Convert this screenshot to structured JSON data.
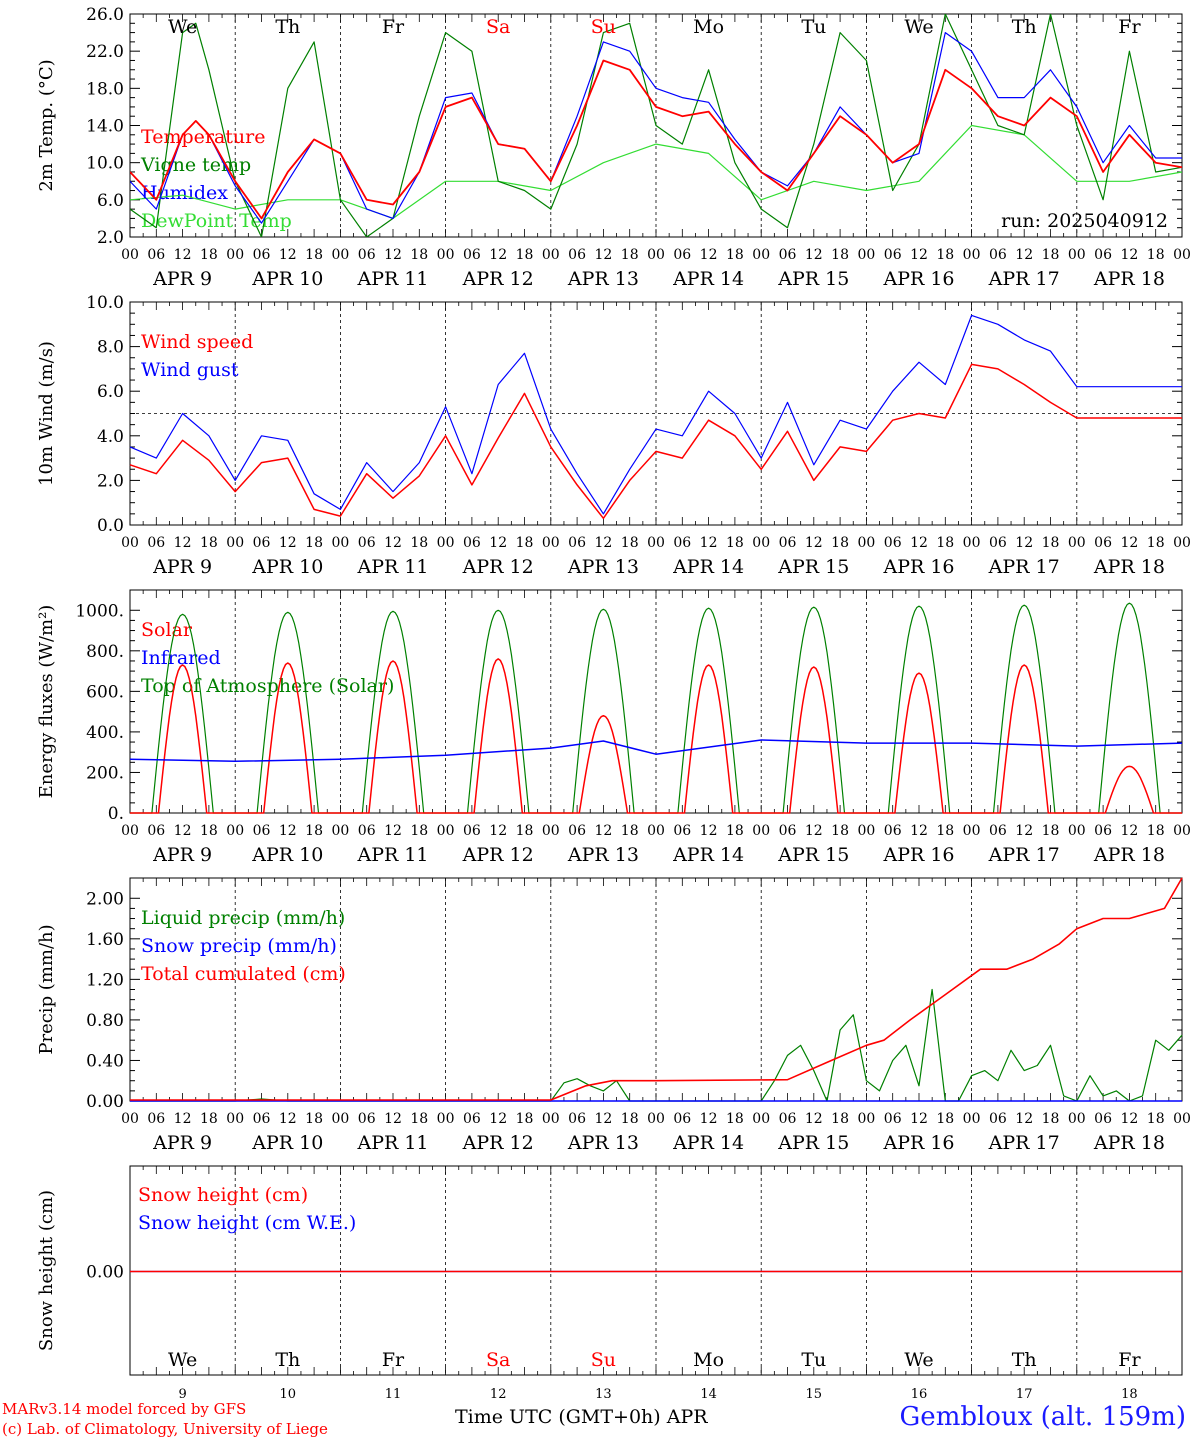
{
  "colors": {
    "red": "#ff0000",
    "blue": "#0000ff",
    "green": "#008000",
    "light_green": "#33dd33",
    "black": "#000000"
  },
  "run_label": "run: 2025040912",
  "footer": {
    "credit1": "MARv3.14 model forced by GFS",
    "credit2": "(c) Lab. of Climatology, University of Liege",
    "xtitle": "Time UTC (GMT+0h) APR",
    "station": "Gembloux (alt. 159m)"
  },
  "chart_data": [
    {
      "type": "line",
      "ylabel": "2m Temp. (°C)",
      "ylim": [
        2,
        26
      ],
      "yticks": [
        "2.0",
        "6.0",
        "10.0",
        "14.0",
        "18.0",
        "22.0",
        "26.0"
      ],
      "ytick_values": [
        2,
        6,
        10,
        14,
        18,
        22,
        26
      ],
      "day_labels": [
        "We",
        "Th",
        "Fr",
        "Sa",
        "Su",
        "Mo",
        "Tu",
        "We",
        "Th",
        "Fr"
      ],
      "legend": [
        "Temperature",
        "Vigne temp",
        "Humidex",
        "DewPoint Temp"
      ],
      "series": [
        {
          "name": "Temperature",
          "color": "#ff0000",
          "x": [
            0,
            6,
            12,
            15,
            18,
            24,
            30,
            36,
            42,
            48,
            54,
            60,
            66,
            72,
            78,
            84,
            90,
            96,
            102,
            108,
            114,
            120,
            126,
            132,
            138,
            144,
            150,
            156,
            162,
            168,
            174,
            180,
            186,
            192,
            198,
            204,
            210,
            216,
            222,
            228,
            234,
            240
          ],
          "values": [
            9,
            6,
            13,
            14.5,
            13,
            8,
            4,
            9,
            12.5,
            11,
            6,
            5.5,
            9,
            16,
            17,
            12,
            11.5,
            8,
            14,
            21,
            20,
            16,
            15,
            15.5,
            12,
            9,
            7,
            11,
            15,
            13,
            10,
            12,
            20,
            18,
            15,
            14,
            17,
            15,
            9,
            13,
            10,
            9.5
          ]
        },
        {
          "name": "Vigne temp",
          "color": "#008000",
          "x": [
            0,
            6,
            12,
            15,
            18,
            24,
            30,
            36,
            42,
            48,
            54,
            60,
            66,
            72,
            78,
            84,
            90,
            96,
            102,
            108,
            114,
            120,
            126,
            132,
            138,
            144,
            150,
            156,
            162,
            168,
            174,
            180,
            186,
            192,
            198,
            204,
            210,
            216,
            222,
            228,
            234,
            240
          ],
          "values": [
            5,
            3,
            24,
            25,
            20,
            8,
            2,
            18,
            23,
            6,
            2,
            4,
            15,
            24,
            22,
            8,
            7,
            5,
            12,
            24,
            25,
            14,
            12,
            20,
            10,
            5,
            3,
            12,
            24,
            21,
            7,
            12,
            26,
            20,
            14,
            13,
            26,
            14,
            6,
            22,
            9,
            9.5
          ]
        },
        {
          "name": "Humidex",
          "color": "#0000ff",
          "x": [
            0,
            6,
            12,
            15,
            18,
            24,
            30,
            36,
            42,
            48,
            54,
            60,
            66,
            72,
            78,
            84,
            90,
            96,
            102,
            108,
            114,
            120,
            126,
            132,
            138,
            144,
            150,
            156,
            162,
            168,
            174,
            180,
            186,
            192,
            198,
            204,
            210,
            216,
            222,
            228,
            234,
            240
          ],
          "values": [
            8,
            5,
            13,
            14.5,
            13,
            7.5,
            3.5,
            8,
            12.5,
            11,
            5,
            4,
            9,
            17,
            17.5,
            12,
            11.5,
            8,
            15,
            23,
            22,
            18,
            17,
            16.5,
            12.5,
            9,
            7.5,
            11,
            16,
            13,
            10,
            11,
            24,
            22,
            17,
            17,
            20,
            16,
            10,
            14,
            10.5,
            10.5
          ]
        },
        {
          "name": "DewPoint Temp",
          "color": "#33dd33",
          "x": [
            0,
            12,
            24,
            36,
            48,
            60,
            72,
            84,
            96,
            108,
            120,
            132,
            144,
            156,
            168,
            180,
            192,
            204,
            216,
            228,
            240
          ],
          "values": [
            6,
            6.5,
            5,
            6,
            6,
            4,
            8,
            8,
            7,
            10,
            12,
            11,
            6,
            8,
            7,
            8,
            14,
            13,
            8,
            8,
            9
          ]
        }
      ]
    },
    {
      "type": "line",
      "ylabel": "10m Wind (m/s)",
      "ylim": [
        0,
        10
      ],
      "yticks": [
        "0.0",
        "2.0",
        "4.0",
        "6.0",
        "8.0",
        "10.0"
      ],
      "ytick_values": [
        0,
        2,
        4,
        6,
        8,
        10
      ],
      "reference_line": 5,
      "legend": [
        "Wind speed",
        "Wind gust"
      ],
      "series": [
        {
          "name": "Wind speed",
          "color": "#ff0000",
          "x": [
            0,
            6,
            12,
            18,
            24,
            30,
            36,
            42,
            48,
            54,
            60,
            66,
            72,
            78,
            84,
            90,
            96,
            102,
            108,
            114,
            120,
            126,
            132,
            138,
            144,
            150,
            156,
            162,
            168,
            174,
            180,
            186,
            192,
            198,
            204,
            210,
            216,
            222,
            228,
            234,
            240
          ],
          "values": [
            2.7,
            2.3,
            3.8,
            2.9,
            1.5,
            2.8,
            3,
            0.7,
            0.4,
            2.3,
            1.2,
            2.2,
            4,
            1.8,
            3.9,
            5.9,
            3.5,
            1.8,
            0.3,
            2,
            3.3,
            3,
            4.7,
            4,
            2.5,
            4.2,
            2,
            3.5,
            3.3,
            4.7,
            5,
            4.8,
            7.2,
            7,
            6.3,
            5.5,
            4.8,
            4.8,
            4.8,
            4.8,
            4.8
          ]
        },
        {
          "name": "Wind gust",
          "color": "#0000ff",
          "x": [
            0,
            6,
            12,
            18,
            24,
            30,
            36,
            42,
            48,
            54,
            60,
            66,
            72,
            78,
            84,
            90,
            96,
            102,
            108,
            114,
            120,
            126,
            132,
            138,
            144,
            150,
            156,
            162,
            168,
            174,
            180,
            186,
            192,
            198,
            204,
            210,
            216,
            222,
            228,
            234,
            240
          ],
          "values": [
            3.5,
            3,
            5,
            4,
            2,
            4,
            3.8,
            1.4,
            0.7,
            2.8,
            1.5,
            2.8,
            5.3,
            2.3,
            6.3,
            7.7,
            4.3,
            2.3,
            0.5,
            2.5,
            4.3,
            4,
            6,
            5,
            3,
            5.5,
            2.7,
            4.7,
            4.3,
            6,
            7.3,
            6.3,
            9.4,
            9,
            8.3,
            7.8,
            6.2,
            6.2,
            6.2,
            6.2,
            6.2
          ]
        }
      ]
    },
    {
      "type": "line",
      "ylabel": "Energy fluxes (W/m²)",
      "ylim": [
        0,
        1100
      ],
      "yticks": [
        "0.",
        "200.",
        "400.",
        "600.",
        "800.",
        "1000."
      ],
      "ytick_values": [
        0,
        200,
        400,
        600,
        800,
        1000
      ],
      "legend": [
        "Solar",
        "Infrared",
        "Top of Atmosphere (Solar)"
      ],
      "series": [
        {
          "name": "Top of Atmosphere (Solar)",
          "color": "#008000",
          "daily_peak": [
            980,
            990,
            995,
            1000,
            1005,
            1010,
            1015,
            1020,
            1025,
            1035
          ]
        },
        {
          "name": "Solar",
          "color": "#ff0000",
          "daily_peak": [
            730,
            740,
            750,
            760,
            480,
            730,
            720,
            690,
            730,
            230
          ]
        },
        {
          "name": "Infrared",
          "color": "#0000ff",
          "x": [
            0,
            24,
            48,
            72,
            96,
            108,
            120,
            144,
            168,
            192,
            216,
            240
          ],
          "values": [
            265,
            255,
            265,
            285,
            320,
            355,
            290,
            360,
            345,
            345,
            330,
            345
          ]
        }
      ]
    },
    {
      "type": "line",
      "ylabel": "Precip (mm/h)",
      "ylim": [
        0,
        2.2
      ],
      "yticks": [
        "0.00",
        "0.40",
        "0.80",
        "1.20",
        "1.60",
        "2.00"
      ],
      "ytick_values": [
        0,
        0.4,
        0.8,
        1.2,
        1.6,
        2.0
      ],
      "legend": [
        "Liquid precip (mm/h)",
        "Snow precip (mm/h)",
        "Total cumulated (cm)"
      ],
      "series": [
        {
          "name": "Liquid precip (mm/h)",
          "color": "#008000",
          "x": [
            0,
            12,
            24,
            30,
            36,
            48,
            96,
            99,
            102,
            105,
            108,
            111,
            114,
            117,
            120,
            126,
            138,
            144,
            147,
            150,
            153,
            156,
            159,
            162,
            165,
            168,
            171,
            174,
            177,
            180,
            183,
            186,
            189,
            192,
            195,
            198,
            201,
            204,
            207,
            210,
            213,
            216,
            219,
            222,
            225,
            228,
            231,
            234,
            237,
            240
          ],
          "values": [
            0,
            0,
            0,
            0.02,
            0,
            0,
            0,
            0.18,
            0.22,
            0.15,
            0.1,
            0.2,
            0,
            0,
            0,
            0,
            0,
            0,
            0.2,
            0.45,
            0.55,
            0.3,
            0,
            0.7,
            0.85,
            0.2,
            0.1,
            0.4,
            0.55,
            0.15,
            1.1,
            0,
            0,
            0.25,
            0.3,
            0.2,
            0.5,
            0.3,
            0.35,
            0.55,
            0.05,
            0,
            0.25,
            0.05,
            0.1,
            0,
            0.05,
            0.6,
            0.5,
            0.65
          ]
        },
        {
          "name": "Snow precip (mm/h)",
          "color": "#0000ff",
          "x": [
            0,
            240
          ],
          "values": [
            0,
            0
          ]
        },
        {
          "name": "Total cumulated (cm)",
          "color": "#ff0000",
          "x": [
            0,
            96,
            100,
            104,
            110,
            120,
            150,
            160,
            168,
            172,
            178,
            186,
            194,
            200,
            206,
            212,
            216,
            222,
            228,
            236,
            240
          ],
          "values": [
            0.01,
            0.01,
            0.08,
            0.15,
            0.2,
            0.2,
            0.21,
            0.4,
            0.55,
            0.6,
            0.8,
            1.05,
            1.3,
            1.3,
            1.4,
            1.55,
            1.7,
            1.8,
            1.8,
            1.9,
            2.2
          ]
        }
      ]
    },
    {
      "type": "line",
      "ylabel": "Snow height (cm)",
      "yticks": [
        "0.00"
      ],
      "ytick_values": [
        0
      ],
      "legend": [
        "Snow height (cm)",
        "Snow height (cm W.E.)"
      ],
      "day_labels": [
        "We",
        "Th",
        "Fr",
        "Sa",
        "Su",
        "Mo",
        "Tu",
        "We",
        "Th",
        "Fr"
      ],
      "day_numbers": [
        "9",
        "10",
        "11",
        "12",
        "13",
        "14",
        "15",
        "16",
        "17",
        "18"
      ],
      "series": [
        {
          "name": "Snow height (cm)",
          "color": "#ff0000",
          "x": [
            0,
            240
          ],
          "values": [
            0,
            0
          ]
        },
        {
          "name": "Snow height (cm W.E.)",
          "color": "#0000ff",
          "x": [
            0,
            240
          ],
          "values": [
            0,
            0
          ]
        }
      ]
    }
  ],
  "x_axis": {
    "hour_labels": [
      "00",
      "06",
      "12",
      "18"
    ],
    "final_label": "00",
    "date_labels": [
      "APR  9",
      "APR 10",
      "APR 11",
      "APR 12",
      "APR 13",
      "APR 14",
      "APR 15",
      "APR 16",
      "APR 17",
      "APR 18"
    ],
    "weekend_indices": [
      3,
      4
    ]
  }
}
